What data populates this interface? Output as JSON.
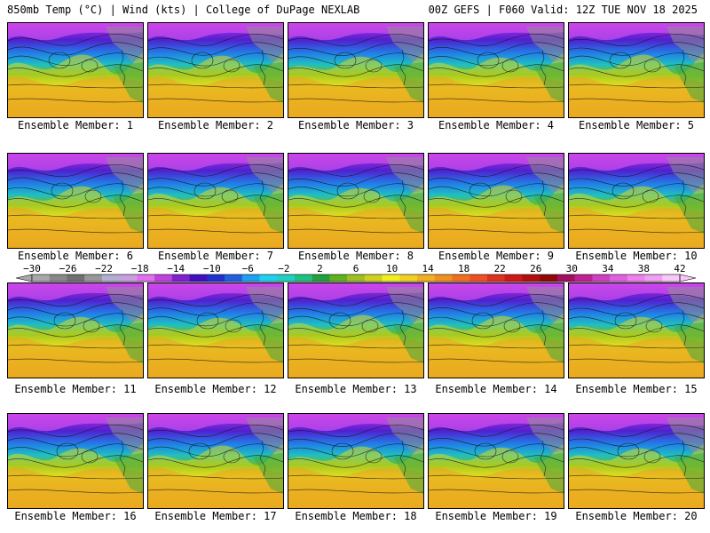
{
  "header": {
    "left": "850mb Temp (°C) | Wind (kts) | College of DuPage NEXLAB",
    "right": "00Z GEFS | F060 Valid: 12Z TUE NOV 18 2025"
  },
  "members": [
    {
      "label": "Ensemble Member: 1"
    },
    {
      "label": "Ensemble Member: 2"
    },
    {
      "label": "Ensemble Member: 3"
    },
    {
      "label": "Ensemble Member: 4"
    },
    {
      "label": "Ensemble Member: 5"
    },
    {
      "label": "Ensemble Member: 6"
    },
    {
      "label": "Ensemble Member: 7"
    },
    {
      "label": "Ensemble Member: 8"
    },
    {
      "label": "Ensemble Member: 9"
    },
    {
      "label": "Ensemble Member: 10"
    },
    {
      "label": "Ensemble Member: 11"
    },
    {
      "label": "Ensemble Member: 12"
    },
    {
      "label": "Ensemble Member: 13"
    },
    {
      "label": "Ensemble Member: 14"
    },
    {
      "label": "Ensemble Member: 15"
    },
    {
      "label": "Ensemble Member: 16"
    },
    {
      "label": "Ensemble Member: 17"
    },
    {
      "label": "Ensemble Member: 18"
    },
    {
      "label": "Ensemble Member: 19"
    },
    {
      "label": "Ensemble Member: 20"
    }
  ],
  "colorbar": {
    "labels": [
      "−30",
      "−26",
      "−22",
      "−18",
      "−14",
      "−10",
      "−6",
      "−2",
      "2",
      "6",
      "10",
      "14",
      "18",
      "22",
      "26",
      "30",
      "34",
      "38",
      "42"
    ],
    "colors": [
      "#a8a8a8",
      "#888888",
      "#707070",
      "#989898",
      "#b0b0d0",
      "#c8a0e0",
      "#e070f0",
      "#c040e0",
      "#8020d0",
      "#4010c0",
      "#2030d0",
      "#2060e0",
      "#20a0f0",
      "#20d0f0",
      "#20d0c0",
      "#20c080",
      "#20a040",
      "#60b020",
      "#a0c020",
      "#d0d020",
      "#f0f020",
      "#f0d020",
      "#f0b020",
      "#f09020",
      "#f07020",
      "#f05020",
      "#e03020",
      "#d01818",
      "#b01010",
      "#900808",
      "#a01060",
      "#c02090",
      "#d040c0",
      "#e060e0",
      "#f080f0",
      "#f0a0f0",
      "#f8c8f8"
    ]
  }
}
